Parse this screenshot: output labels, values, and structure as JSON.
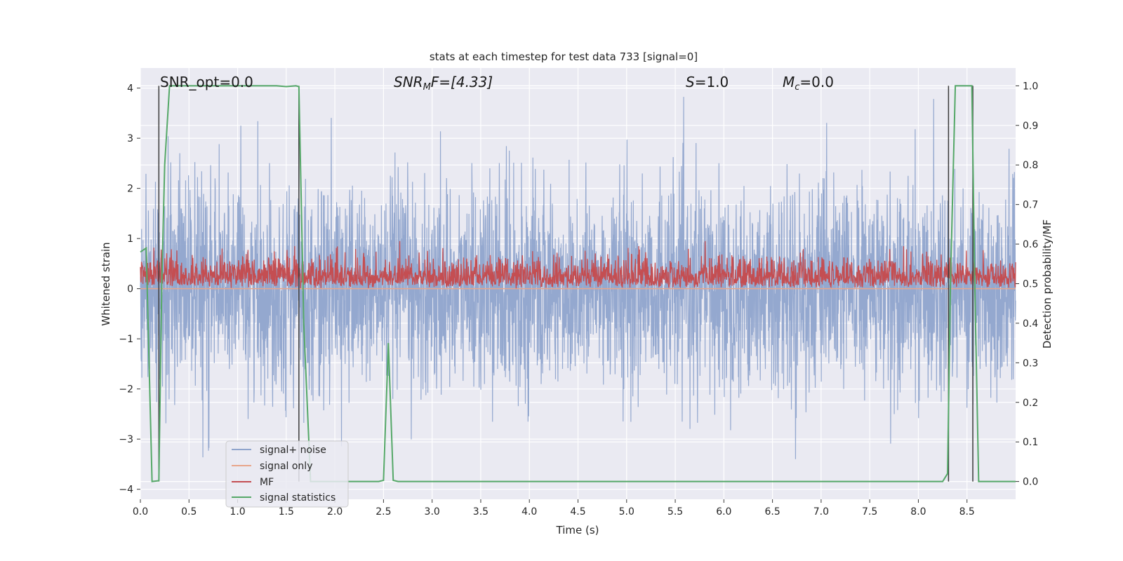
{
  "chart_data": {
    "type": "line",
    "title": "stats at each timestep for test data 733 [signal=0]",
    "xlabel": "Time (s)",
    "ylabel": "Whitened strain",
    "ylabel_right": "Detection probability/MF",
    "xlim": [
      0.0,
      9.0
    ],
    "ylim": [
      -4.2,
      4.4
    ],
    "ylim_right": [
      -0.045,
      1.045
    ],
    "xticks": [
      "0.0",
      "0.5",
      "1.0",
      "1.5",
      "2.0",
      "2.5",
      "3.0",
      "3.5",
      "4.0",
      "4.5",
      "5.0",
      "5.5",
      "6.0",
      "6.5",
      "7.0",
      "7.5",
      "8.0",
      "8.5"
    ],
    "yticks_left": [
      "4",
      "3",
      "2",
      "1",
      "0",
      "−1",
      "−2",
      "−3",
      "−4"
    ],
    "yticks_right": [
      "1.0",
      "0.9",
      "0.8",
      "0.7",
      "0.6",
      "0.5",
      "0.4",
      "0.3",
      "0.2",
      "0.1",
      "0.0"
    ],
    "grid": true,
    "legend_placement": "lower-left",
    "annotations": {
      "snr_opt": "SNR_opt=0.0",
      "snr_mf_main": "SNR",
      "snr_mf_sub": "M",
      "snr_mf_rest": "F=[4.33]",
      "s_main": "S",
      "s_rest": "=1.0",
      "mc_main": "M",
      "mc_sub": "c",
      "mc_rest": "=0.0"
    },
    "series": [
      {
        "name": "signal+ noise",
        "color": "#8fa4cc",
        "description_stats": {
          "mean": 0.0,
          "std": 1.0,
          "min": -3.7,
          "max": 4.0,
          "samples": 3600
        }
      },
      {
        "name": "signal only",
        "color": "#e8a58a",
        "x": [
          0.0,
          9.0
        ],
        "y": [
          0.0,
          0.0
        ]
      },
      {
        "name": "MF",
        "color": "#c44e52",
        "axis": "left",
        "baseline": 0.0,
        "mean": 0.3,
        "max": 0.95
      },
      {
        "name": "signal statistics",
        "color": "#55a868",
        "axis": "right",
        "x": [
          0.0,
          0.06,
          0.12,
          0.19,
          0.22,
          0.25,
          0.3,
          0.5,
          1.0,
          1.4,
          1.5,
          1.6,
          1.63,
          1.68,
          1.75,
          2.0,
          2.45,
          2.5,
          2.55,
          2.6,
          2.65,
          3.0,
          5.0,
          8.0,
          8.25,
          8.3,
          8.33,
          8.38,
          8.55,
          8.58,
          8.62,
          9.0
        ],
        "y": [
          0.58,
          0.59,
          0.0,
          0.002,
          0.5,
          0.8,
          1.0,
          1.0,
          1.0,
          1.0,
          0.998,
          1.0,
          0.998,
          0.4,
          0.0,
          0.0,
          0.0,
          0.003,
          0.35,
          0.003,
          0.0,
          0.0,
          0.0,
          0.0,
          0.0,
          0.02,
          0.5,
          1.0,
          1.0,
          0.5,
          0.0,
          0.0
        ]
      }
    ],
    "vertical_markers": [
      {
        "x": 0.19,
        "y_right_from": 0.0,
        "y_right_to": 1.0
      },
      {
        "x": 1.63,
        "y_right_from": 0.0,
        "y_right_to": 1.0
      },
      {
        "x": 8.31,
        "y_right_from": 0.0,
        "y_right_to": 1.0
      },
      {
        "x": 8.56,
        "y_right_from": 0.0,
        "y_right_to": 1.0
      }
    ]
  }
}
